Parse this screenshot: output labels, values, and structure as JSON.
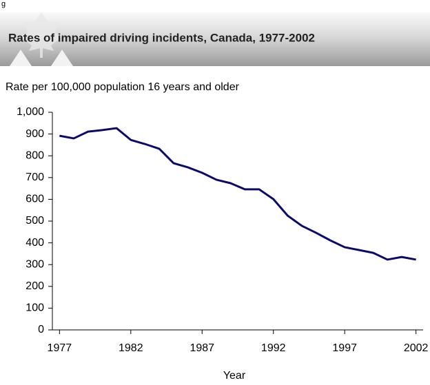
{
  "header": {
    "fragment": "g",
    "title": "Rates of impaired driving incidents, Canada, 1977-2002"
  },
  "chart_data": {
    "type": "line",
    "y_label": "Rate per 100,000 population 16 years and older",
    "x_label": "Year",
    "x": [
      1977,
      1978,
      1979,
      1980,
      1981,
      1982,
      1983,
      1984,
      1985,
      1986,
      1987,
      1988,
      1989,
      1990,
      1991,
      1992,
      1993,
      1994,
      1995,
      1996,
      1997,
      1998,
      1999,
      2000,
      2001,
      2002
    ],
    "series": [
      {
        "color": "#0a0a6e",
        "values": [
          892,
          880,
          911,
          918,
          927,
          873,
          854,
          832,
          766,
          747,
          722,
          690,
          674,
          646,
          646,
          601,
          525,
          478,
          446,
          411,
          380,
          367,
          354,
          323,
          335,
          323
        ]
      }
    ],
    "xlim": [
      1976.5,
      2002.5
    ],
    "xticks": [
      1977,
      1982,
      1987,
      1992,
      1997,
      2002
    ],
    "ylim": [
      0,
      1000
    ],
    "yticks": [
      0,
      100,
      200,
      300,
      400,
      500,
      600,
      700,
      800,
      900,
      {
        "value": 1000,
        "label": "1,000"
      }
    ]
  }
}
